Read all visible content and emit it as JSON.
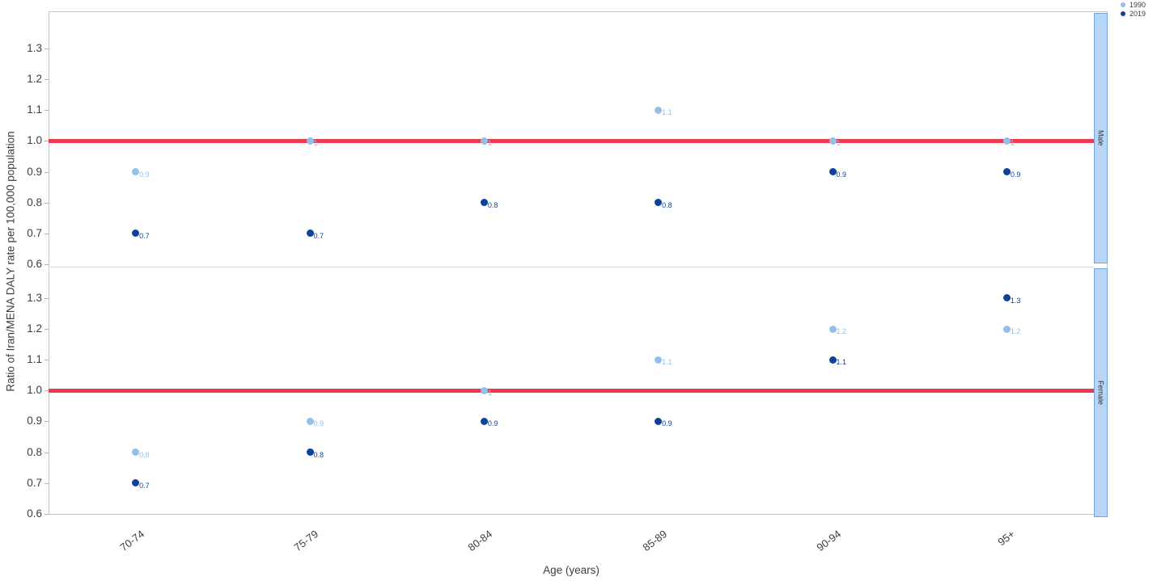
{
  "chart_data": {
    "type": "scatter",
    "xlabel": "Age (years)",
    "ylabel": "Ratio of Iran/MENA DALY rate per 100,000 population",
    "categories": [
      "70-74",
      "75-79",
      "80-84",
      "85-89",
      "90-94",
      "95+"
    ],
    "yticks": [
      0.6,
      0.7,
      0.8,
      0.9,
      1.0,
      1.1,
      1.2,
      1.3
    ],
    "refline": 1.0,
    "refline_color": "#ec3b4e",
    "strip_fill": "#b7d5f6",
    "strip_border": "#74a6dc",
    "grid": false,
    "legend_position": "top-right",
    "legend": [
      {
        "label": "1990",
        "color": "#93bfe9"
      },
      {
        "label": "2019",
        "color": "#0e4199"
      }
    ],
    "panels": [
      {
        "label": "Male",
        "ylim": [
          0.592,
          1.421
        ],
        "series": [
          {
            "name": "1990",
            "color": "#93bfe9",
            "values": [
              0.9,
              1,
              1,
              1.1,
              1,
              1
            ]
          },
          {
            "name": "2019",
            "color": "#0e4199",
            "values": [
              0.7,
              0.7,
              0.8,
              0.8,
              0.9,
              0.9
            ]
          }
        ]
      },
      {
        "label": "Female",
        "ylim": [
          0.597,
          1.402
        ],
        "series": [
          {
            "name": "1990",
            "color": "#93bfe9",
            "values": [
              0.8,
              0.9,
              1,
              1.1,
              1.2,
              1.2
            ]
          },
          {
            "name": "2019",
            "color": "#0e4199",
            "values": [
              0.7,
              0.8,
              0.9,
              0.9,
              1.1,
              1.3
            ]
          }
        ]
      }
    ]
  }
}
